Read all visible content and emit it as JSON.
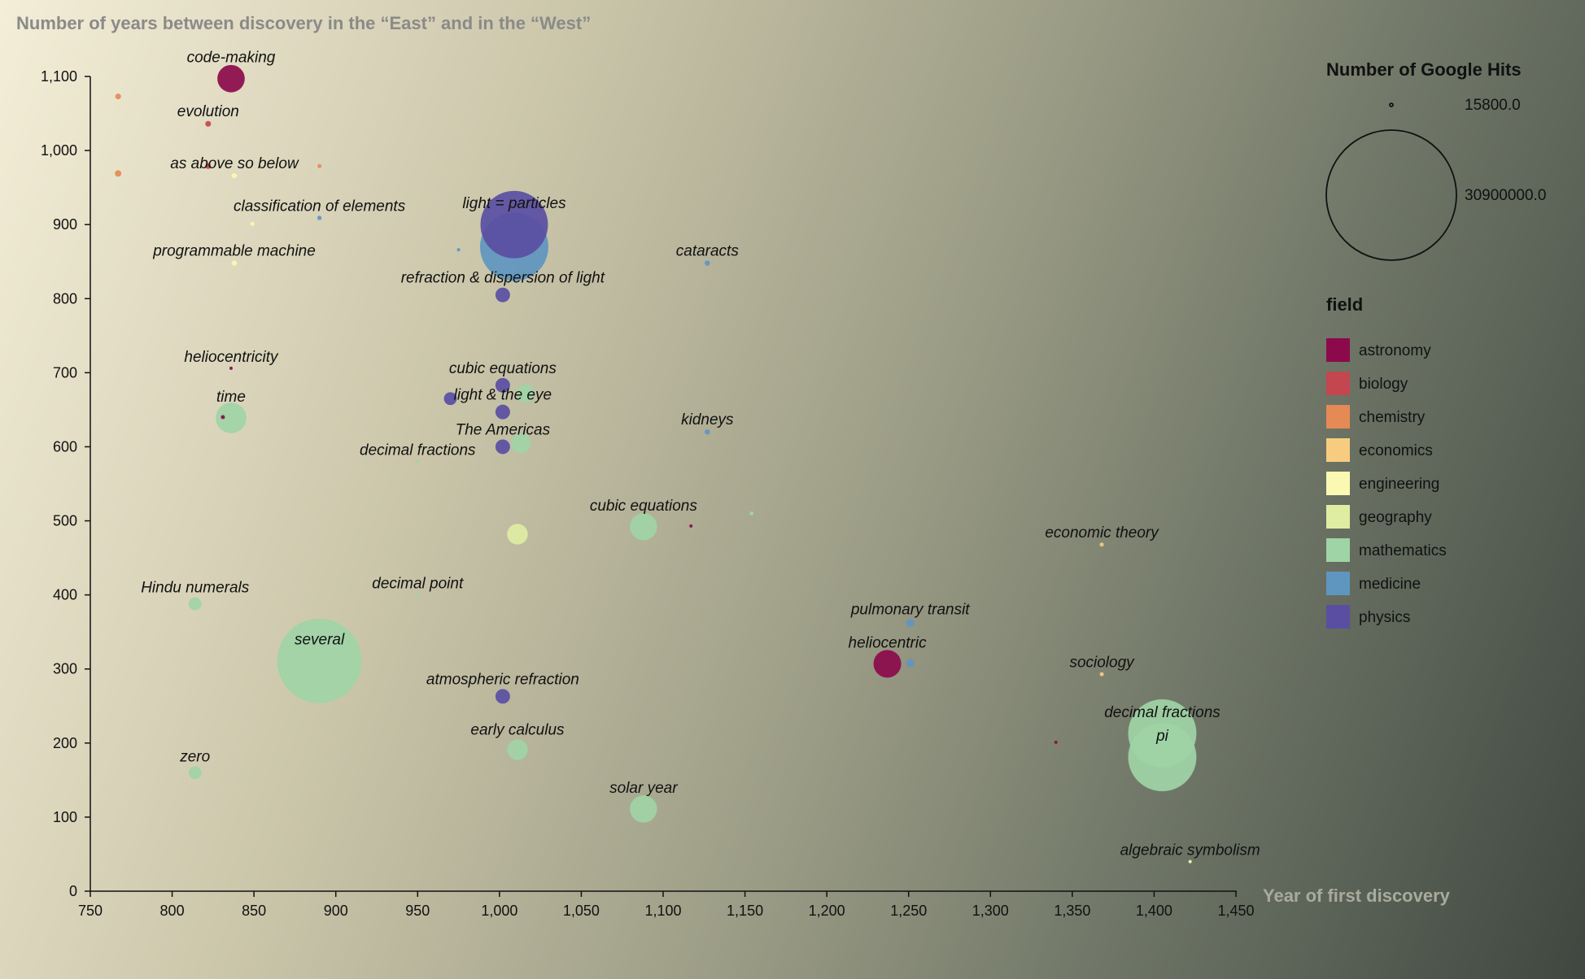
{
  "chart_data": {
    "type": "scatter",
    "title": "Number of years between discovery in the “East” and in the “West”",
    "xlabel": "Year of first discovery",
    "ylabel": "",
    "xlim": [
      750,
      1450
    ],
    "ylim": [
      0,
      1100
    ],
    "xticks": [
      750,
      800,
      850,
      900,
      950,
      1000,
      1050,
      1100,
      1150,
      1200,
      1250,
      1300,
      1350,
      1400,
      1450
    ],
    "yticks": [
      0,
      100,
      200,
      300,
      400,
      500,
      600,
      700,
      800,
      900,
      1000,
      1100
    ],
    "grid": false,
    "size_legend": {
      "title": "Number of Google Hits",
      "entries": [
        {
          "label": "15800.0",
          "value": 15800
        },
        {
          "label": "30900000.0",
          "value": 30900000
        }
      ]
    },
    "color_legend": {
      "title": "field",
      "placement": "right",
      "entries": [
        {
          "name": "astronomy",
          "color": "#8c0a4b"
        },
        {
          "name": "biology",
          "color": "#c4464f"
        },
        {
          "name": "chemistry",
          "color": "#e68a55"
        },
        {
          "name": "economics",
          "color": "#f7cc80"
        },
        {
          "name": "engineering",
          "color": "#fbf8b2"
        },
        {
          "name": "geography",
          "color": "#dfeda2"
        },
        {
          "name": "mathematics",
          "color": "#9fd4a6"
        },
        {
          "name": "medicine",
          "color": "#5e96c0"
        },
        {
          "name": "physics",
          "color": "#5a4ea3"
        }
      ]
    },
    "points": [
      {
        "x": 836,
        "y": 1097,
        "size": 1370000,
        "field": "astronomy",
        "label": "code-making"
      },
      {
        "x": 767,
        "y": 1073,
        "size": 60000,
        "field": "chemistry",
        "label": ""
      },
      {
        "x": 822,
        "y": 1036,
        "size": 60000,
        "field": "biology",
        "label": "evolution"
      },
      {
        "x": 822,
        "y": 979,
        "size": 60000,
        "field": "biology",
        "label": ""
      },
      {
        "x": 767,
        "y": 969,
        "size": 75000,
        "field": "chemistry",
        "label": ""
      },
      {
        "x": 838,
        "y": 966,
        "size": 50000,
        "field": "engineering",
        "label": "as above so below"
      },
      {
        "x": 890,
        "y": 979,
        "size": 30000,
        "field": "chemistry",
        "label": ""
      },
      {
        "x": 890,
        "y": 909,
        "size": 35000,
        "field": "medicine",
        "label": "classification of elements"
      },
      {
        "x": 849,
        "y": 901,
        "size": 30000,
        "field": "engineering",
        "label": ""
      },
      {
        "x": 838,
        "y": 848,
        "size": 50000,
        "field": "engineering",
        "label": "programmable machine"
      },
      {
        "x": 975,
        "y": 866,
        "size": 20000,
        "field": "medicine",
        "label": ""
      },
      {
        "x": 1009,
        "y": 870,
        "size": 8500000,
        "field": "medicine",
        "label": ""
      },
      {
        "x": 1009,
        "y": 900,
        "size": 8300000,
        "field": "physics",
        "label": "light = particles"
      },
      {
        "x": 1002,
        "y": 805,
        "size": 390000,
        "field": "physics",
        "label": "refraction & dispersion of light"
      },
      {
        "x": 1127,
        "y": 848,
        "size": 50000,
        "field": "medicine",
        "label": "cataracts"
      },
      {
        "x": 836,
        "y": 706,
        "size": 8000,
        "field": "astronomy",
        "label": "heliocentricity"
      },
      {
        "x": 836,
        "y": 639,
        "size": 1700000,
        "field": "mathematics",
        "label": "time"
      },
      {
        "x": 831,
        "y": 640,
        "size": 30000,
        "field": "astronomy",
        "label": ""
      },
      {
        "x": 1016,
        "y": 672,
        "size": 600000,
        "field": "mathematics",
        "label": ""
      },
      {
        "x": 1002,
        "y": 683,
        "size": 390000,
        "field": "physics",
        "label": "cubic equations"
      },
      {
        "x": 970,
        "y": 665,
        "size": 300000,
        "field": "physics",
        "label": ""
      },
      {
        "x": 1002,
        "y": 647,
        "size": 390000,
        "field": "physics",
        "label": "light & the eye"
      },
      {
        "x": 1013,
        "y": 605,
        "size": 700000,
        "field": "mathematics",
        "label": ""
      },
      {
        "x": 1002,
        "y": 600,
        "size": 390000,
        "field": "physics",
        "label": "The Americas"
      },
      {
        "x": 950,
        "y": 580,
        "size": 6000,
        "field": "mathematics",
        "label": "decimal fractions"
      },
      {
        "x": 1127,
        "y": 620,
        "size": 50000,
        "field": "medicine",
        "label": "kidneys"
      },
      {
        "x": 1011,
        "y": 482,
        "size": 780000,
        "field": "geography",
        "label": ""
      },
      {
        "x": 1088,
        "y": 492,
        "size": 1350000,
        "field": "mathematics",
        "label": "cubic equations"
      },
      {
        "x": 1117,
        "y": 493,
        "size": 8000,
        "field": "astronomy",
        "label": ""
      },
      {
        "x": 1154,
        "y": 510,
        "size": 30000,
        "field": "mathematics",
        "label": ""
      },
      {
        "x": 1368,
        "y": 468,
        "size": 30000,
        "field": "economics",
        "label": "economic theory"
      },
      {
        "x": 814,
        "y": 388,
        "size": 300000,
        "field": "mathematics",
        "label": "Hindu numerals"
      },
      {
        "x": 950,
        "y": 400,
        "size": 6000,
        "field": "mathematics",
        "label": "decimal point"
      },
      {
        "x": 890,
        "y": 311,
        "size": 13000000,
        "field": "mathematics",
        "label": "several"
      },
      {
        "x": 1251,
        "y": 362,
        "size": 120000,
        "field": "medicine",
        "label": "pulmonary transit"
      },
      {
        "x": 1237,
        "y": 307,
        "size": 1400000,
        "field": "astronomy",
        "label": "heliocentric"
      },
      {
        "x": 1251,
        "y": 308,
        "size": 120000,
        "field": "medicine",
        "label": ""
      },
      {
        "x": 1368,
        "y": 293,
        "size": 30000,
        "field": "economics",
        "label": "sociology"
      },
      {
        "x": 1002,
        "y": 263,
        "size": 390000,
        "field": "physics",
        "label": "atmospheric refraction"
      },
      {
        "x": 1011,
        "y": 191,
        "size": 780000,
        "field": "mathematics",
        "label": "early calculus"
      },
      {
        "x": 1340,
        "y": 201,
        "size": 8000,
        "field": "astronomy",
        "label": ""
      },
      {
        "x": 1405,
        "y": 213,
        "size": 8500000,
        "field": "mathematics",
        "label": "decimal fractions"
      },
      {
        "x": 1405,
        "y": 181,
        "size": 8500000,
        "field": "mathematics",
        "label": "pi"
      },
      {
        "x": 814,
        "y": 160,
        "size": 300000,
        "field": "mathematics",
        "label": "zero"
      },
      {
        "x": 1088,
        "y": 111,
        "size": 1350000,
        "field": "mathematics",
        "label": "solar year"
      },
      {
        "x": 1422,
        "y": 40,
        "size": 8000,
        "field": "engineering",
        "label": "algebraic symbolism"
      }
    ]
  }
}
